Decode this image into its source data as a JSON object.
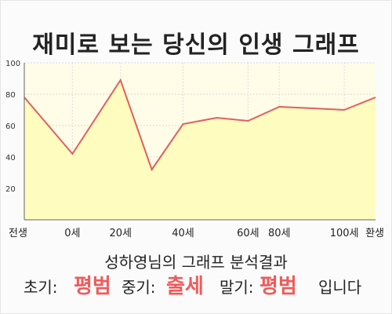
{
  "title": "재미로 보는 당신의 인생 그래프",
  "subtitle": "성하영님의 그래프 분석결과",
  "summary": {
    "early_label": "초기:",
    "early_value": "평범",
    "mid_label": "중기:",
    "mid_value": "출세",
    "late_label": "말기:",
    "late_value": "평범",
    "ending": "입니다"
  },
  "colors": {
    "line": "#e0605f",
    "fill": "#fffcbf",
    "accent": "#ef5b5b"
  },
  "chart_data": {
    "type": "area",
    "x": [
      0,
      10,
      20,
      26.5,
      33,
      40,
      46.5,
      53,
      60,
      66.5,
      73
    ],
    "values": [
      78,
      42,
      89,
      32,
      61,
      65,
      63,
      72,
      71,
      70,
      78
    ],
    "xticks": [
      {
        "x": 0,
        "label": "전생"
      },
      {
        "x": 10,
        "label": "0세"
      },
      {
        "x": 20,
        "label": "20세"
      },
      {
        "x": 33,
        "label": "40세"
      },
      {
        "x": 46.5,
        "label": "60세"
      },
      {
        "x": 53,
        "label": "80세"
      },
      {
        "x": 66.5,
        "label": "100세"
      },
      {
        "x": 73,
        "label": "환생"
      }
    ],
    "yticks": [
      20,
      40,
      60,
      80,
      100
    ],
    "ylim": [
      0,
      100
    ],
    "grid": true
  }
}
